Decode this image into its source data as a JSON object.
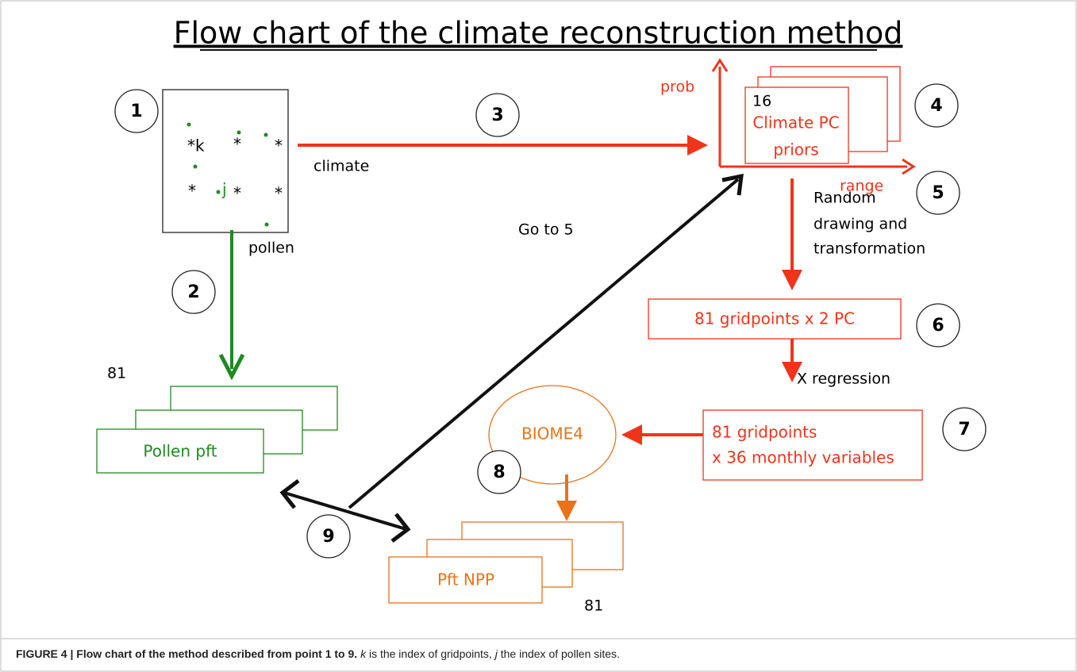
{
  "title": "Flow chart of the climate reconstruction method",
  "steps": [
    "1",
    "2",
    "3",
    "4",
    "5",
    "6",
    "7",
    "8",
    "9"
  ],
  "grid_box": {
    "k_point": "*k",
    "star": "*",
    "pollen_site": "j"
  },
  "labels": {
    "climate": "climate",
    "pollen": "pollen",
    "prob": "prob",
    "range": "range",
    "count_priors": "16",
    "go_to": "Go to 5",
    "random": [
      "Random",
      "drawing and",
      "transformation"
    ],
    "regression": "X regression",
    "count_pollen": "81",
    "count_npp": "81"
  },
  "boxes": {
    "priors": [
      "Climate PC",
      "priors"
    ],
    "gridpoints_pc": "81 gridpoints x 2 PC",
    "gridpoints_vars": [
      "81 gridpoints",
      "x 36 monthly variables"
    ],
    "biome": "BIOME4",
    "pollen_pft": "Pollen pft",
    "pft_npp": "Pft NPP"
  },
  "caption": {
    "bold": "FIGURE 4 | Flow chart of the method described from point 1 to 9.",
    "k": "k",
    "text1": " is the index of gridpoints, ",
    "j": "j",
    "text2": " the index of pollen sites."
  }
}
